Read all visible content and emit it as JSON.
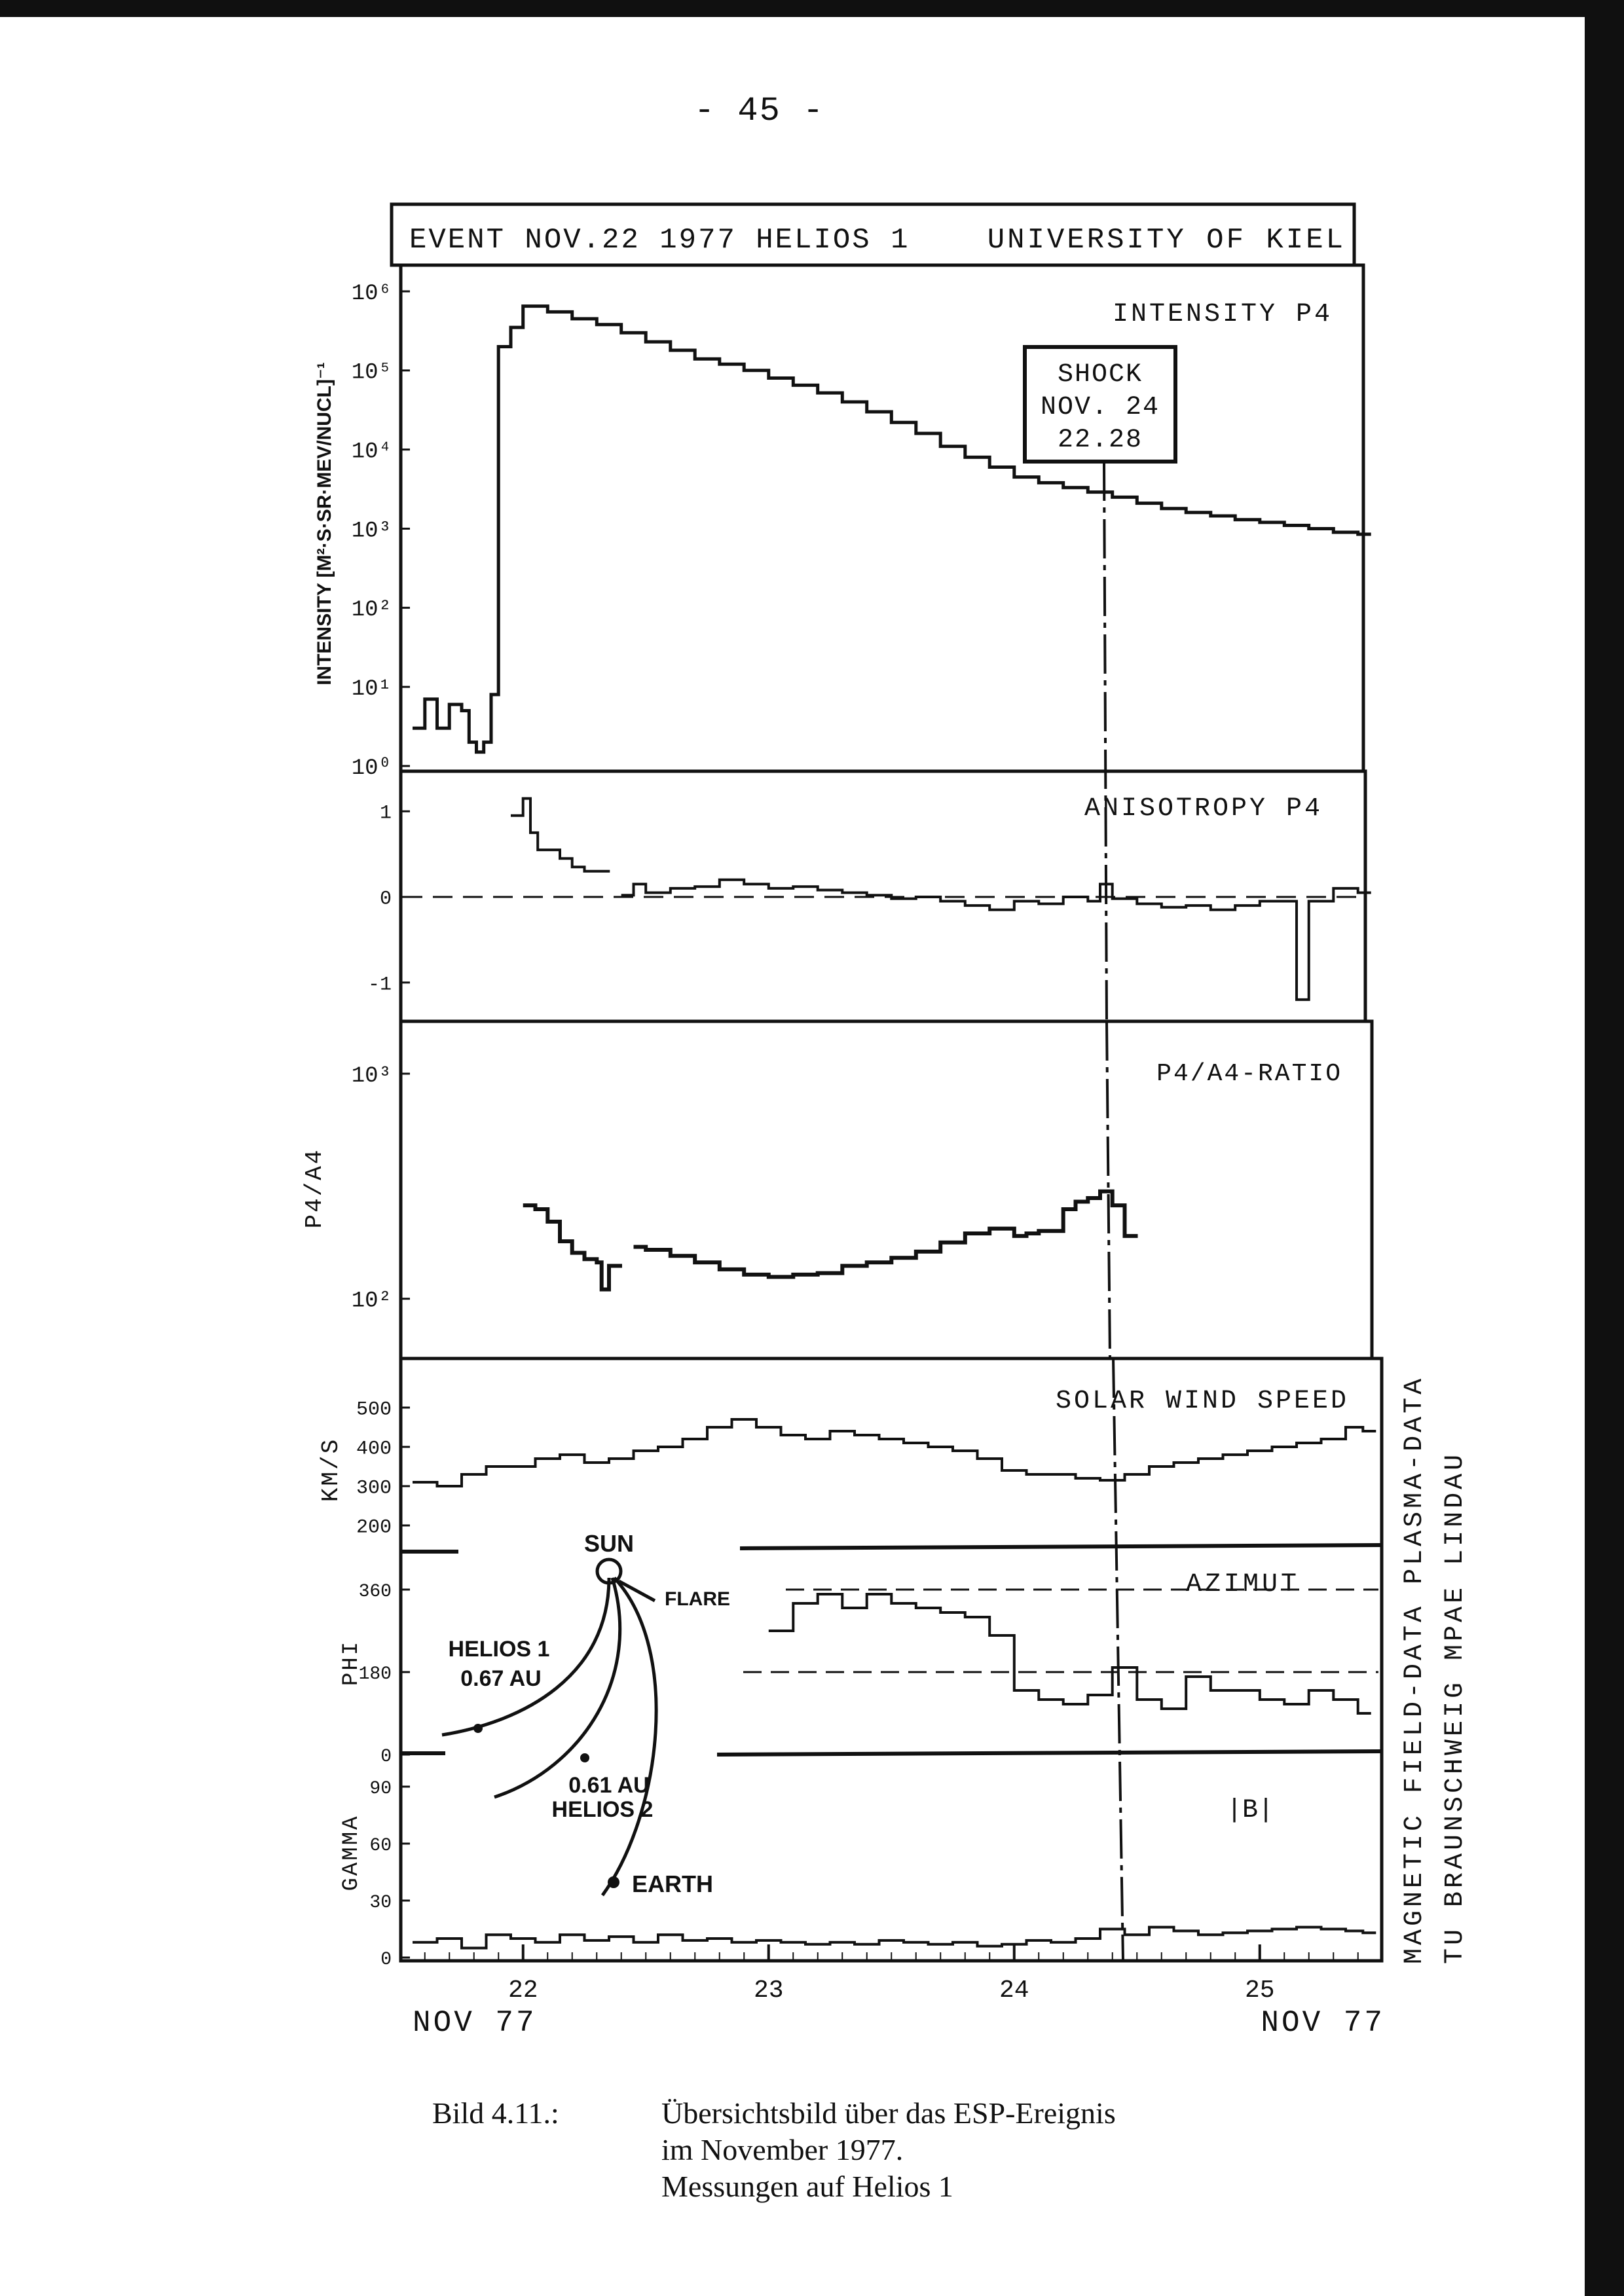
{
  "page_number": "- 45 -",
  "header": {
    "event": "EVENT NOV.22 1977 HELIOS 1",
    "institution": "UNIVERSITY OF KIEL"
  },
  "side_credits": {
    "line1": "MAGNETIC FIELD-DATA PLASMA-DATA",
    "line2": "TU BRAUNSCHWEIG  MPAE LINDAU"
  },
  "caption": {
    "label": "Bild 4.11.:",
    "line1": "Übersichtsbild über das ESP-Ereignis",
    "line2": "im November 1977.",
    "line3": "Messungen auf Helios 1"
  },
  "x_axis": {
    "ticks": [
      "22",
      "23",
      "24",
      "25"
    ],
    "left_label": "NOV 77",
    "right_label": "NOV 77"
  },
  "shock": {
    "lines": [
      "SHOCK",
      "NOV. 24",
      "22.28"
    ]
  },
  "inset": {
    "sun": "SUN",
    "flare": "FLARE",
    "helios1": [
      "HELIOS 1",
      "0.67 AU"
    ],
    "helios2": [
      "0.61 AU",
      "HELIOS 2"
    ],
    "earth": "EARTH"
  },
  "chart_data": [
    {
      "type": "line",
      "title": "INTENSITY P4",
      "ylabel": "INTENSITY [M²·S·SR·MEV/NUCL]⁻¹",
      "yscale": "log",
      "ylim": [
        1,
        1000000
      ],
      "y_tick_labels": [
        "10⁰",
        "10¹",
        "10²",
        "10³",
        "10⁴",
        "10⁵",
        "10⁶"
      ],
      "series": [
        {
          "step": true,
          "x": [
            21.55,
            21.6,
            21.65,
            21.7,
            21.75,
            21.78,
            21.81,
            21.84,
            21.87,
            21.9,
            21.95,
            22.0,
            22.1,
            22.2,
            22.3,
            22.4,
            22.5,
            22.6,
            22.7,
            22.8,
            22.9,
            23.0,
            23.1,
            23.2,
            23.3,
            23.4,
            23.5,
            23.6,
            23.7,
            23.8,
            23.9,
            24.0,
            24.1,
            24.2,
            24.3,
            24.4,
            24.5,
            24.6,
            24.7,
            24.8,
            24.9,
            25.0,
            25.1,
            25.2,
            25.3,
            25.4
          ],
          "y": [
            3,
            7,
            3,
            6,
            5,
            2,
            1.5,
            2,
            8,
            200000,
            350000,
            650000,
            550000,
            450000,
            380000,
            300000,
            230000,
            180000,
            140000,
            120000,
            100000,
            80000,
            65000,
            52000,
            40000,
            30000,
            22000,
            16000,
            11000,
            8000,
            6000,
            4500,
            3800,
            3300,
            2900,
            2500,
            2100,
            1800,
            1600,
            1450,
            1300,
            1200,
            1100,
            1000,
            900,
            850
          ]
        }
      ],
      "annotation": "SHOCK NOV. 24 22.28"
    },
    {
      "type": "line",
      "title": "ANISOTROPY P4",
      "ylim": [
        -1.3,
        1.3
      ],
      "y_tick_labels": [
        "1",
        "0",
        "-1"
      ],
      "series": [
        {
          "step": true,
          "x": [
            21.95,
            22.0,
            22.03,
            22.06,
            22.1,
            22.15,
            22.2,
            22.25,
            22.3
          ],
          "y": [
            0.95,
            1.15,
            0.75,
            0.55,
            0.55,
            0.45,
            0.35,
            0.3,
            0.3
          ]
        },
        {
          "step": true,
          "x": [
            22.4,
            22.45,
            22.5,
            22.6,
            22.7,
            22.8,
            22.9,
            23.0,
            23.1,
            23.2,
            23.3,
            23.4,
            23.5,
            23.6,
            23.7,
            23.8,
            23.9,
            24.0,
            24.1,
            24.2,
            24.3,
            24.35,
            24.4,
            24.5,
            24.6,
            24.7,
            24.8,
            24.9,
            25.0,
            25.1,
            25.15,
            25.2,
            25.3,
            25.4
          ],
          "y": [
            0.02,
            0.15,
            0.05,
            0.1,
            0.12,
            0.2,
            0.15,
            0.1,
            0.12,
            0.08,
            0.05,
            0.02,
            -0.02,
            0.0,
            -0.05,
            -0.1,
            -0.15,
            -0.05,
            -0.08,
            0.0,
            -0.05,
            0.15,
            -0.02,
            -0.08,
            -0.12,
            -0.1,
            -0.15,
            -0.1,
            -0.05,
            -0.05,
            -1.2,
            -0.05,
            0.1,
            0.05
          ]
        }
      ],
      "reference_line": 0
    },
    {
      "type": "line",
      "title": "P4/A4-RATIO",
      "ylabel": "P4/A4",
      "yscale": "log",
      "ylim": [
        60,
        1000
      ],
      "y_tick_labels": [
        "10³",
        "10²"
      ],
      "series": [
        {
          "step": true,
          "x": [
            22.0,
            22.05,
            22.1,
            22.15,
            22.2,
            22.25,
            22.3,
            22.32,
            22.35
          ],
          "y": [
            260,
            250,
            220,
            180,
            160,
            150,
            145,
            110,
            140
          ]
        },
        {
          "step": true,
          "x": [
            22.45,
            22.5,
            22.6,
            22.7,
            22.8,
            22.9,
            23.0,
            23.1,
            23.2,
            23.3,
            23.4,
            23.5,
            23.6,
            23.7,
            23.8,
            23.9,
            24.0,
            24.05,
            24.1,
            24.2,
            24.25,
            24.3,
            24.35,
            24.4,
            24.45
          ],
          "y": [
            170,
            165,
            155,
            145,
            135,
            128,
            125,
            128,
            130,
            140,
            145,
            152,
            162,
            178,
            195,
            205,
            190,
            195,
            200,
            250,
            270,
            280,
            300,
            260,
            190
          ]
        }
      ],
      "marker_line_x": 24.45
    },
    {
      "type": "line",
      "title": "SOLAR WIND SPEED",
      "ylabel": "KM/S",
      "ylim": [
        150,
        550
      ],
      "y_tick_labels": [
        "500",
        "400",
        "300",
        "200"
      ],
      "series": [
        {
          "step": true,
          "x": [
            21.55,
            21.65,
            21.75,
            21.85,
            21.95,
            22.05,
            22.15,
            22.25,
            22.35,
            22.45,
            22.55,
            22.65,
            22.75,
            22.85,
            22.95,
            23.05,
            23.15,
            23.25,
            23.35,
            23.45,
            23.55,
            23.65,
            23.75,
            23.85,
            23.95,
            24.05,
            24.15,
            24.25,
            24.35,
            24.45,
            24.55,
            24.65,
            24.75,
            24.85,
            24.95,
            25.05,
            25.15,
            25.25,
            25.35,
            25.42
          ],
          "y": [
            310,
            300,
            330,
            350,
            350,
            370,
            380,
            360,
            370,
            390,
            400,
            420,
            450,
            470,
            450,
            430,
            420,
            440,
            430,
            420,
            410,
            400,
            390,
            370,
            340,
            330,
            330,
            320,
            315,
            330,
            350,
            360,
            370,
            380,
            390,
            400,
            410,
            420,
            450,
            440
          ]
        }
      ]
    },
    {
      "type": "line",
      "title": "AZIMUT",
      "ylabel": "PHI",
      "ylim": [
        0,
        400
      ],
      "y_tick_labels": [
        "360",
        "180",
        "0"
      ],
      "series": [
        {
          "step": true,
          "x": [
            23.0,
            23.1,
            23.2,
            23.3,
            23.4,
            23.5,
            23.6,
            23.7,
            23.8,
            23.9,
            24.0,
            24.1,
            24.2,
            24.3,
            24.4,
            24.5,
            24.6,
            24.7,
            24.8,
            24.9,
            25.0,
            25.1,
            25.2,
            25.3,
            25.4
          ],
          "y": [
            270,
            330,
            350,
            320,
            350,
            330,
            320,
            310,
            300,
            260,
            140,
            120,
            110,
            130,
            190,
            120,
            100,
            170,
            140,
            140,
            120,
            110,
            140,
            120,
            90
          ]
        }
      ],
      "reference_lines": [
        360,
        180
      ]
    },
    {
      "type": "line",
      "title": "|B|",
      "ylabel": "GAMMA",
      "ylim": [
        0,
        100
      ],
      "y_tick_labels": [
        "90",
        "60",
        "30",
        "0"
      ],
      "series": [
        {
          "step": true,
          "x": [
            21.55,
            21.65,
            21.75,
            21.85,
            21.95,
            22.05,
            22.15,
            22.25,
            22.35,
            22.45,
            22.55,
            22.65,
            22.75,
            22.85,
            22.95,
            23.05,
            23.15,
            23.25,
            23.35,
            23.45,
            23.55,
            23.65,
            23.75,
            23.85,
            23.95,
            24.05,
            24.15,
            24.25,
            24.35,
            24.45,
            24.55,
            24.65,
            24.75,
            24.85,
            24.95,
            25.05,
            25.15,
            25.25,
            25.35,
            25.42
          ],
          "y": [
            8,
            10,
            5,
            12,
            10,
            8,
            12,
            9,
            11,
            8,
            12,
            9,
            10,
            8,
            9,
            8,
            7,
            8,
            7,
            9,
            8,
            7,
            8,
            6,
            7,
            9,
            8,
            10,
            15,
            12,
            16,
            14,
            12,
            13,
            14,
            15,
            16,
            15,
            14,
            13
          ]
        }
      ]
    }
  ]
}
